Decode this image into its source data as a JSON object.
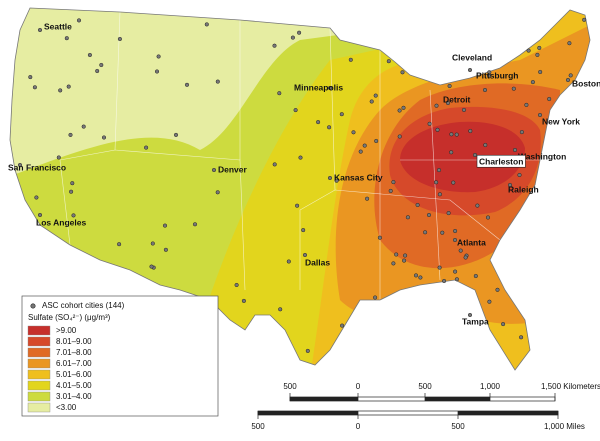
{
  "legend": {
    "points_label": "ASC cohort cities (144)",
    "sulfate_label": "Sulfate (SO₄²⁻) (μg/m³)",
    "classes": [
      {
        "label": ">9.00",
        "color": "#c62f2b"
      },
      {
        "label": "8.01–9.00",
        "color": "#d6492a"
      },
      {
        "label": "7.01–8.00",
        "color": "#e06a25"
      },
      {
        "label": "6.01–7.00",
        "color": "#ea9622"
      },
      {
        "label": "5.01–6.00",
        "color": "#efbf1e"
      },
      {
        "label": "4.01–5.00",
        "color": "#e2d51d"
      },
      {
        "label": "3.01–4.00",
        "color": "#cddb3f"
      },
      {
        "label": "<3.00",
        "color": "#e6eda2"
      }
    ]
  },
  "cities": [
    "Seattle",
    "San Francisco",
    "Los Angeles",
    "Denver",
    "Minneapolis",
    "Kansas City",
    "Dallas",
    "Cleveland",
    "Pittsburgh",
    "Detroit",
    "New York",
    "Boston",
    "Washington",
    "Charleston",
    "Raleigh",
    "Atlanta",
    "Tampa"
  ],
  "scale": {
    "kilometers": [
      "500",
      "0",
      "500",
      "1,000",
      "1,500 Kilometers"
    ],
    "miles": [
      "500",
      "0",
      "500",
      "1,000 Miles"
    ]
  }
}
